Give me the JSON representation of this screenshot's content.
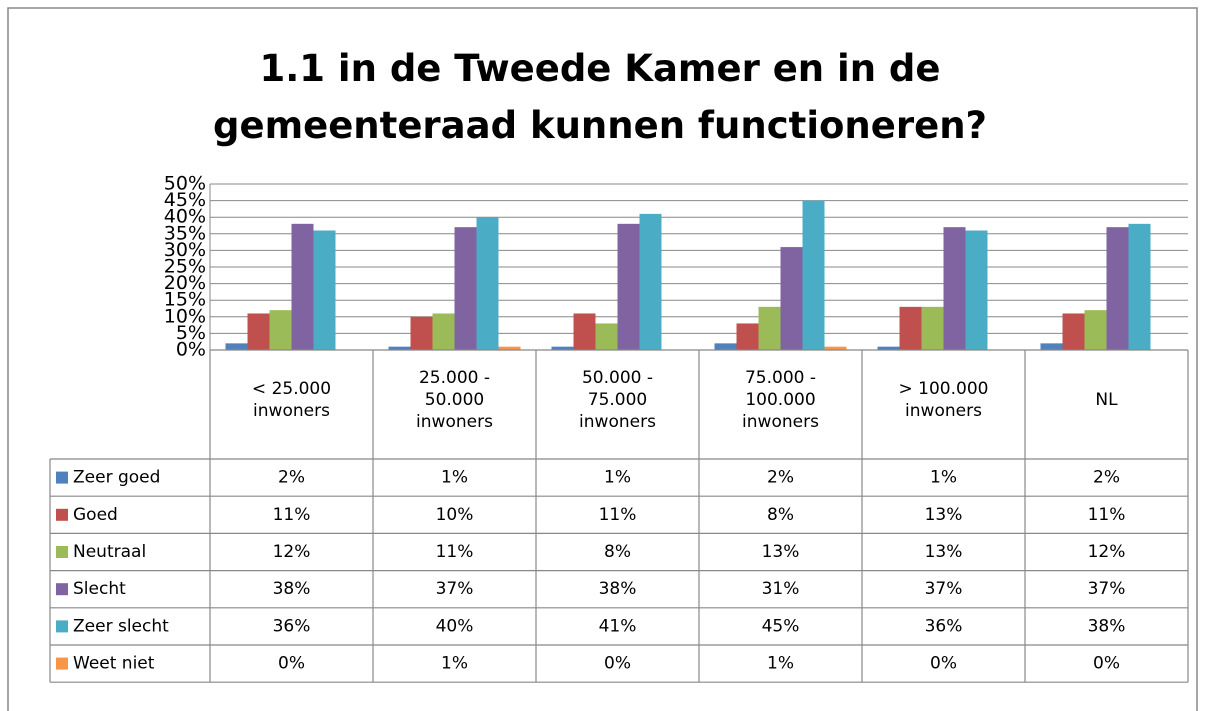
{
  "chart_data": {
    "type": "bar",
    "title": "1.1 in de Tweede Kamer en in de gemeenteraad kunnen functioneren?",
    "categories": [
      "< 25.000 inwoners",
      "25.000 - 50.000 inwoners",
      "50.000 - 75.000 inwoners",
      "75.000 - 100.000 inwoners",
      "> 100.000 inwoners",
      "NL"
    ],
    "series": [
      {
        "name": "Zeer goed",
        "color": "#4f81bd",
        "values": [
          2,
          1,
          1,
          2,
          1,
          2
        ],
        "value_labels": [
          "2%",
          "1%",
          "1%",
          "2%",
          "1%",
          "2%"
        ]
      },
      {
        "name": "Goed",
        "color": "#c0504d",
        "values": [
          11,
          10,
          11,
          8,
          13,
          11
        ],
        "value_labels": [
          "11%",
          "10%",
          "11%",
          "8%",
          "13%",
          "11%"
        ]
      },
      {
        "name": "Neutraal",
        "color": "#9bbb59",
        "values": [
          12,
          11,
          8,
          13,
          13,
          12
        ],
        "value_labels": [
          "12%",
          "11%",
          "8%",
          "13%",
          "13%",
          "12%"
        ]
      },
      {
        "name": "Slecht",
        "color": "#8064a2",
        "values": [
          38,
          37,
          38,
          31,
          37,
          37
        ],
        "value_labels": [
          "38%",
          "37%",
          "38%",
          "31%",
          "37%",
          "37%"
        ]
      },
      {
        "name": "Zeer slecht",
        "color": "#4bacc6",
        "values": [
          36,
          40,
          41,
          45,
          36,
          38
        ],
        "value_labels": [
          "36%",
          "40%",
          "41%",
          "45%",
          "36%",
          "38%"
        ]
      },
      {
        "name": "Weet niet",
        "color": "#f79646",
        "values": [
          0,
          1,
          0,
          1,
          0,
          0
        ],
        "value_labels": [
          "0%",
          "1%",
          "0%",
          "1%",
          "0%",
          "0%"
        ]
      }
    ],
    "ylim": [
      0,
      50
    ],
    "yticks": [
      {
        "value": 0,
        "label": "0%"
      },
      {
        "value": 5,
        "label": "5%"
      },
      {
        "value": 10,
        "label": "10%"
      },
      {
        "value": 15,
        "label": "15%"
      },
      {
        "value": 20,
        "label": "20%"
      },
      {
        "value": 25,
        "label": "25%"
      },
      {
        "value": 30,
        "label": "30%"
      },
      {
        "value": 35,
        "label": "35%"
      },
      {
        "value": 40,
        "label": "40%"
      },
      {
        "value": 45,
        "label": "45%"
      },
      {
        "value": 50,
        "label": "50%"
      }
    ],
    "grid": true
  }
}
